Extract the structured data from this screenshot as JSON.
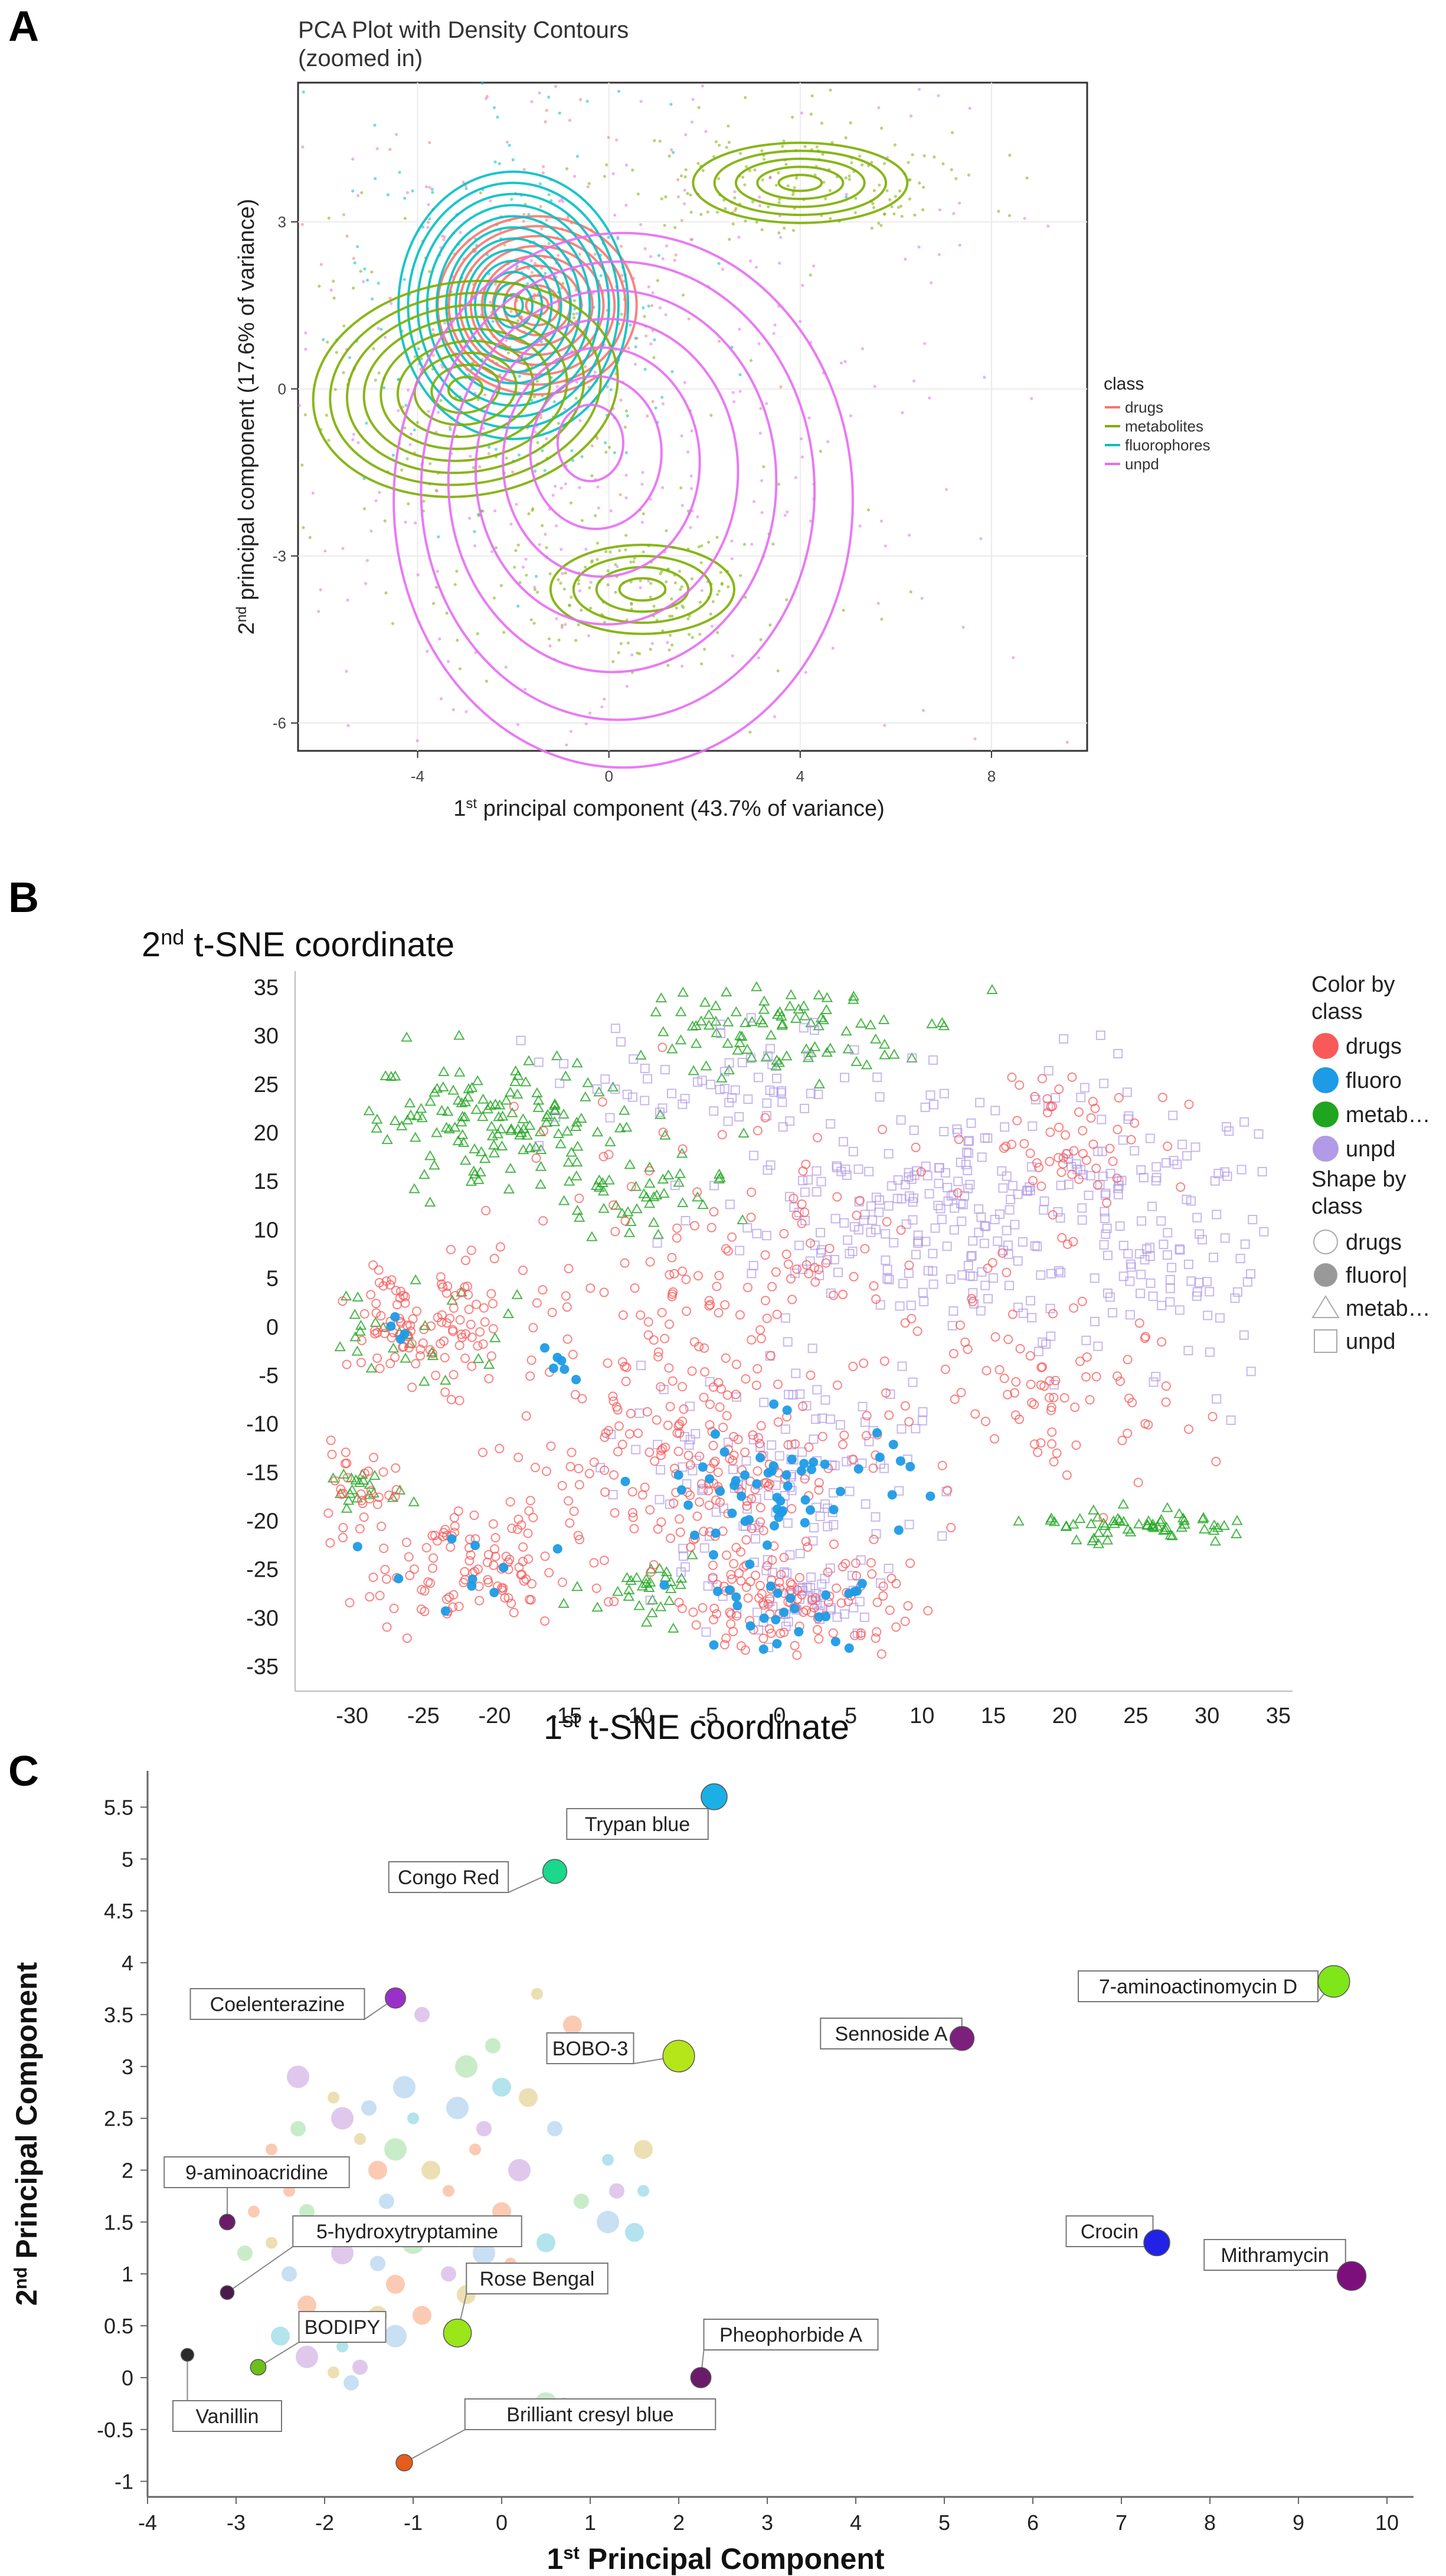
{
  "panels": {
    "a": {
      "letter": "A"
    },
    "b": {
      "letter": "B"
    },
    "c": {
      "letter": "C"
    }
  },
  "chart_data": [
    {
      "id": "pca-density",
      "type": "scatter",
      "title": "PCA Plot with Density Contours",
      "subtitle": "(zoomed in)",
      "xlabel_parts": [
        "1",
        "st",
        " principal component (43.7% of variance)"
      ],
      "ylabel_parts": [
        "2",
        "nd",
        " principal component (17.6% of variance)"
      ],
      "xlim": [
        -6.5,
        10
      ],
      "ylim": [
        -6.5,
        5.5
      ],
      "x_ticks": [
        -4,
        0,
        4,
        8
      ],
      "y_ticks": [
        -6,
        -3,
        0,
        3
      ],
      "x_tick_labels": [
        "-4",
        "0",
        "4",
        "8"
      ],
      "y_tick_labels": [
        "-6",
        "-3",
        "0",
        "3"
      ],
      "grid": true,
      "legend_position": "right",
      "legend_title": "class",
      "series": [
        {
          "name": "drugs",
          "color": "#f8766d"
        },
        {
          "name": "metabolites",
          "color": "#7cae00"
        },
        {
          "name": "fluorophores",
          "color": "#00bfc4"
        },
        {
          "name": "unpd",
          "color": "#e76bf3"
        }
      ],
      "density_centers": [
        {
          "series": "drugs",
          "x": -1.5,
          "y": 1.5,
          "sx": 1.3,
          "sy": 1.0,
          "levels": 9
        },
        {
          "series": "fluorophores",
          "x": -2.0,
          "y": 1.5,
          "sx": 1.5,
          "sy": 1.5,
          "levels": 12
        },
        {
          "series": "metabolites",
          "x": -3.0,
          "y": 0.0,
          "sx": 2.0,
          "sy": 1.2,
          "levels": 9
        },
        {
          "series": "metabolites",
          "x": 4.0,
          "y": 3.7,
          "sx": 1.4,
          "sy": 0.45,
          "levels": 5
        },
        {
          "series": "metabolites",
          "x": 0.7,
          "y": -3.6,
          "sx": 1.2,
          "sy": 0.5,
          "levels": 4
        },
        {
          "series": "unpd",
          "x": -0.5,
          "y": -0.8,
          "sx": 3.0,
          "sy": 3.0,
          "levels": 7
        }
      ]
    },
    {
      "id": "tsne",
      "type": "scatter",
      "title_parts": [
        "2",
        "nd",
        " t-SNE coordinate"
      ],
      "xlabel_parts": [
        "1",
        "st",
        " t-SNE coordinate"
      ],
      "xlim": [
        -34,
        36
      ],
      "ylim": [
        -37,
        36
      ],
      "x_ticks": [
        -30,
        -25,
        -20,
        -15,
        -10,
        -5,
        0,
        5,
        10,
        15,
        20,
        25,
        30,
        35
      ],
      "y_ticks": [
        35,
        30,
        25,
        20,
        15,
        10,
        5,
        0,
        -5,
        -10,
        -15,
        -20,
        -25,
        -30,
        -35
      ],
      "x_tick_labels": [
        "-30",
        "-25",
        "-20",
        "-15",
        "-10",
        "-5",
        "0",
        "5",
        "10",
        "15",
        "20",
        "25",
        "30",
        "35"
      ],
      "y_tick_labels": [
        "35",
        "30",
        "25",
        "20",
        "15",
        "10",
        "5",
        "0",
        "-5",
        "-10",
        "-15",
        "-20",
        "-25",
        "-30",
        "-35"
      ],
      "grid": false,
      "legend_position": "right",
      "legend_color_title": [
        "Color by",
        "class"
      ],
      "legend_shape_title": [
        "Shape by",
        "class"
      ],
      "color_legend": [
        {
          "name": "drugs",
          "color": "#f95959"
        },
        {
          "name": "fluoro",
          "color": "#1e9be6"
        },
        {
          "name": "metab…",
          "color": "#1fa51f"
        },
        {
          "name": "unpd",
          "color": "#b19ae6"
        }
      ],
      "shape_legend": [
        {
          "name": "drugs",
          "shape": "circle-open"
        },
        {
          "name": "fluoro|",
          "shape": "circle-filled"
        },
        {
          "name": "metab…",
          "shape": "triangle-open"
        },
        {
          "name": "unpd",
          "shape": "square-open"
        }
      ],
      "clusters": [
        {
          "series": "metab",
          "x": -20,
          "y": 21,
          "sx": 5,
          "sy": 3,
          "n": 140
        },
        {
          "series": "metab",
          "x": 0,
          "y": 30,
          "sx": 5,
          "sy": 2.5,
          "n": 90
        },
        {
          "series": "metab",
          "x": -9,
          "y": 13,
          "sx": 3,
          "sy": 2,
          "n": 40
        },
        {
          "series": "metab",
          "x": 26,
          "y": -20.5,
          "sx": 4,
          "sy": 0.8,
          "n": 60
        },
        {
          "series": "metab",
          "x": -10,
          "y": -27,
          "sx": 2.5,
          "sy": 1.5,
          "n": 30
        },
        {
          "series": "metab",
          "x": -29,
          "y": -17,
          "sx": 1.5,
          "sy": 1.5,
          "n": 20
        },
        {
          "series": "metab",
          "x": -26,
          "y": 0,
          "sx": 3,
          "sy": 3,
          "n": 30
        },
        {
          "series": "unpd",
          "x": 10,
          "y": 12,
          "sx": 7,
          "sy": 7,
          "n": 260
        },
        {
          "series": "unpd",
          "x": 27,
          "y": 10,
          "sx": 4,
          "sy": 8,
          "n": 120
        },
        {
          "series": "unpd",
          "x": 0,
          "y": -15,
          "sx": 6,
          "sy": 5,
          "n": 120
        },
        {
          "series": "unpd",
          "x": -5,
          "y": 25,
          "sx": 6,
          "sy": 3,
          "n": 60
        },
        {
          "series": "unpd",
          "x": 2,
          "y": -28,
          "sx": 3,
          "sy": 3,
          "n": 60
        },
        {
          "series": "drugs",
          "x": -25,
          "y": 0,
          "sx": 3,
          "sy": 3,
          "n": 110
        },
        {
          "series": "drugs",
          "x": -5,
          "y": -14,
          "sx": 6,
          "sy": 5,
          "n": 180
        },
        {
          "series": "drugs",
          "x": 1,
          "y": -28,
          "sx": 4,
          "sy": 3,
          "n": 120
        },
        {
          "series": "drugs",
          "x": -22,
          "y": -25,
          "sx": 4,
          "sy": 3,
          "n": 110
        },
        {
          "series": "drugs",
          "x": 20,
          "y": 19,
          "sx": 3,
          "sy": 4,
          "n": 60
        },
        {
          "series": "drugs",
          "x": -5,
          "y": 5,
          "sx": 8,
          "sy": 8,
          "n": 150
        },
        {
          "series": "drugs",
          "x": 18,
          "y": -8,
          "sx": 6,
          "sy": 5,
          "n": 90
        },
        {
          "series": "drugs",
          "x": -30,
          "y": -17,
          "sx": 1.5,
          "sy": 2,
          "n": 30
        },
        {
          "series": "fluoro",
          "x": 0,
          "y": -17,
          "sx": 5,
          "sy": 4,
          "n": 60
        },
        {
          "series": "fluoro",
          "x": 1,
          "y": -30,
          "sx": 3,
          "sy": 2,
          "n": 25
        },
        {
          "series": "fluoro",
          "x": -20,
          "y": -25,
          "sx": 4,
          "sy": 3,
          "n": 10
        },
        {
          "series": "fluoro",
          "x": -16,
          "y": -4,
          "sx": 1.5,
          "sy": 1,
          "n": 6
        },
        {
          "series": "fluoro",
          "x": -26,
          "y": -1,
          "sx": 1,
          "sy": 1,
          "n": 4
        }
      ]
    },
    {
      "id": "pca-labeled",
      "type": "scatter",
      "xlabel_parts": [
        "1",
        "st",
        " Principal Component"
      ],
      "ylabel_parts": [
        "2",
        "nd",
        " Principal Component"
      ],
      "xlim": [
        -4,
        10.3
      ],
      "ylim": [
        -1.15,
        5.85
      ],
      "x_ticks": [
        -4,
        -3,
        -2,
        -1,
        0,
        1,
        2,
        3,
        4,
        5,
        6,
        7,
        8,
        9,
        10
      ],
      "y_ticks": [
        -1,
        -0.5,
        0,
        0.5,
        1,
        1.5,
        2,
        2.5,
        3,
        3.5,
        4,
        4.5,
        5,
        5.5
      ],
      "x_tick_labels": [
        "-4",
        "-3",
        "-2",
        "-1",
        "0",
        "1",
        "2",
        "3",
        "4",
        "5",
        "6",
        "7",
        "8",
        "9",
        "10"
      ],
      "y_tick_labels": [
        "-1",
        "-0.5",
        "0",
        "0.5",
        "1",
        "1.5",
        "2",
        "2.5",
        "3",
        "3.5",
        "4",
        "4.5",
        "5",
        "5.5"
      ],
      "grid": false,
      "labeled_points": [
        {
          "label": "Trypan blue",
          "x": 2.4,
          "y": 5.6,
          "color": "#1ab0e6",
          "size": 1.0
        },
        {
          "label": "Congo Red",
          "x": 0.6,
          "y": 4.88,
          "color": "#1ad98c",
          "size": 0.9
        },
        {
          "label": "Coelenterazine",
          "x": -1.2,
          "y": 3.66,
          "color": "#9b30c8",
          "size": 0.7
        },
        {
          "label": "BOBO-3",
          "x": 2.0,
          "y": 3.1,
          "color": "#b5e61a",
          "size": 1.3
        },
        {
          "label": "Sennoside A",
          "x": 5.2,
          "y": 3.27,
          "color": "#7d1f7d",
          "size": 0.9
        },
        {
          "label": "7-aminoactinomycin D",
          "x": 9.4,
          "y": 3.82,
          "color": "#7fe61a",
          "size": 1.3
        },
        {
          "label": "9-aminoacridine",
          "x": -3.1,
          "y": 1.5,
          "color": "#6a1c6a",
          "size": 0.45
        },
        {
          "label": "5-hydroxytryptamine",
          "x": -3.1,
          "y": 0.82,
          "color": "#4a1a4a",
          "size": 0.35
        },
        {
          "label": "Rose Bengal",
          "x": -0.5,
          "y": 0.43,
          "color": "#9ae61a",
          "size": 1.1
        },
        {
          "label": "BODIPY",
          "x": -2.75,
          "y": 0.1,
          "color": "#6dbf1a",
          "size": 0.45
        },
        {
          "label": "Vanillin",
          "x": -3.55,
          "y": 0.22,
          "color": "#2a2a2a",
          "size": 0.3
        },
        {
          "label": "Pheophorbide A",
          "x": 2.25,
          "y": 0.0,
          "color": "#6a1c6a",
          "size": 0.7
        },
        {
          "label": "Crocin",
          "x": 7.4,
          "y": 1.3,
          "color": "#2222e6",
          "size": 1.0
        },
        {
          "label": "Mithramycin",
          "x": 9.6,
          "y": 0.98,
          "color": "#7d0f7d",
          "size": 1.15
        },
        {
          "label": "Brilliant cresyl blue",
          "x": -1.1,
          "y": -0.82,
          "color": "#e65c1a",
          "size": 0.5
        }
      ],
      "faded_points": [
        [
          -2.6,
          2.2
        ],
        [
          -2.3,
          2.4
        ],
        [
          -2.0,
          2.0
        ],
        [
          -1.8,
          2.5
        ],
        [
          -1.6,
          2.3
        ],
        [
          -1.5,
          2.6
        ],
        [
          -1.4,
          2.0
        ],
        [
          -1.2,
          2.2
        ],
        [
          -1.0,
          2.5
        ],
        [
          -0.9,
          3.5
        ],
        [
          -0.8,
          2.0
        ],
        [
          -0.5,
          2.6
        ],
        [
          -0.3,
          2.2
        ],
        [
          -0.1,
          3.2
        ],
        [
          0.0,
          2.8
        ],
        [
          0.2,
          2.0
        ],
        [
          0.4,
          3.7
        ],
        [
          0.6,
          2.4
        ],
        [
          0.8,
          3.4
        ],
        [
          1.0,
          3.2
        ],
        [
          1.2,
          2.1
        ],
        [
          1.3,
          1.8
        ],
        [
          1.6,
          2.2
        ],
        [
          1.2,
          1.5
        ],
        [
          -2.4,
          1.8
        ],
        [
          -2.2,
          1.6
        ],
        [
          -2.0,
          1.4
        ],
        [
          -1.8,
          1.2
        ],
        [
          -1.6,
          1.5
        ],
        [
          -1.4,
          1.1
        ],
        [
          -1.2,
          0.9
        ],
        [
          -1.0,
          1.3
        ],
        [
          -0.8,
          1.5
        ],
        [
          -0.6,
          1.0
        ],
        [
          -0.4,
          0.8
        ],
        [
          -0.2,
          1.2
        ],
        [
          0.1,
          1.1
        ],
        [
          0.3,
          0.9
        ],
        [
          0.5,
          1.3
        ],
        [
          0.7,
          1.0
        ],
        [
          -2.6,
          1.3
        ],
        [
          -2.4,
          1.0
        ],
        [
          -2.2,
          0.7
        ],
        [
          -2.0,
          0.5
        ],
        [
          -1.8,
          0.3
        ],
        [
          -1.6,
          0.1
        ],
        [
          -1.4,
          0.6
        ],
        [
          -1.2,
          0.4
        ],
        [
          -2.8,
          1.6
        ],
        [
          -2.9,
          1.2
        ],
        [
          -2.5,
          0.4
        ],
        [
          -2.2,
          0.2
        ],
        [
          -1.9,
          0.05
        ],
        [
          -1.7,
          -0.05
        ],
        [
          -0.9,
          0.6
        ],
        [
          0.5,
          -0.25
        ],
        [
          0.7,
          -0.25
        ],
        [
          -0.2,
          2.4
        ],
        [
          0.3,
          2.7
        ],
        [
          -1.1,
          2.8
        ],
        [
          -0.6,
          1.8
        ],
        [
          0.9,
          1.7
        ],
        [
          1.5,
          1.4
        ],
        [
          -2.3,
          2.9
        ],
        [
          -1.9,
          2.7
        ],
        [
          -1.3,
          1.7
        ],
        [
          0.0,
          1.6
        ],
        [
          -0.4,
          3.0
        ],
        [
          1.6,
          1.8
        ]
      ],
      "faded_colors": [
        "#f9b89a",
        "#b5e6b5",
        "#9ad9e6",
        "#d4b5e6",
        "#e6d49a",
        "#b5d4f0"
      ]
    }
  ]
}
